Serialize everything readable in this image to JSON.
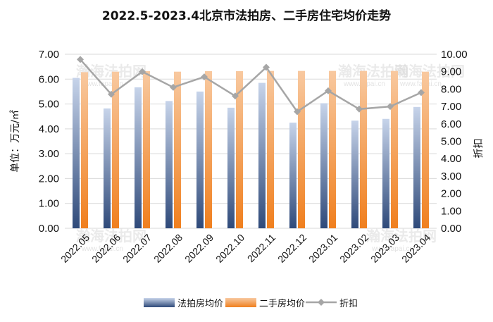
{
  "title": "2022.5-2023.4北京市法拍房、二手房住宅均价走势",
  "watermark": {
    "text": "瀚海法拍网",
    "url": "www.fapai.cn"
  },
  "colors": {
    "auction_top": "#c7d4ea",
    "auction_bottom": "#2f4a7a",
    "secondhand_top": "#f8c9a0",
    "secondhand_bottom": "#f07f1e",
    "discount_line": "#a6a6a6",
    "grid": "#d9d9d9"
  },
  "chart_data": {
    "type": "bar",
    "categories": [
      "2022.05",
      "2022.06",
      "2022.07",
      "2022.08",
      "2022.09",
      "2022.10",
      "2022.11",
      "2022.12",
      "2023.01",
      "2023.02",
      "2023.03",
      "2023.04"
    ],
    "series": [
      {
        "name": "法拍房均价",
        "type": "bar",
        "axis": "left",
        "values": [
          6.05,
          4.82,
          5.67,
          5.12,
          5.5,
          4.85,
          5.85,
          4.25,
          5.03,
          4.33,
          4.4,
          4.88
        ]
      },
      {
        "name": "二手房均价",
        "type": "bar",
        "axis": "left",
        "values": [
          6.28,
          6.3,
          6.32,
          6.3,
          6.32,
          6.32,
          6.33,
          6.33,
          6.33,
          6.33,
          6.33,
          6.3
        ]
      },
      {
        "name": "折扣",
        "type": "line",
        "axis": "right",
        "values": [
          9.7,
          7.7,
          9.0,
          8.1,
          8.7,
          7.6,
          9.25,
          6.7,
          7.9,
          6.85,
          7.0,
          7.8
        ]
      }
    ],
    "ylabel": "单位：万元/㎡",
    "y2label": "折扣",
    "ylim": [
      0,
      7
    ],
    "y2lim": [
      0,
      10
    ],
    "yticks": [
      "0.00",
      "1.00",
      "2.00",
      "3.00",
      "4.00",
      "5.00",
      "6.00",
      "7.00"
    ],
    "y2ticks": [
      "0.00",
      "1.00",
      "2.00",
      "3.00",
      "4.00",
      "5.00",
      "6.00",
      "7.00",
      "8.00",
      "9.00",
      "10.00"
    ],
    "grid": true,
    "legend_position": "bottom"
  }
}
